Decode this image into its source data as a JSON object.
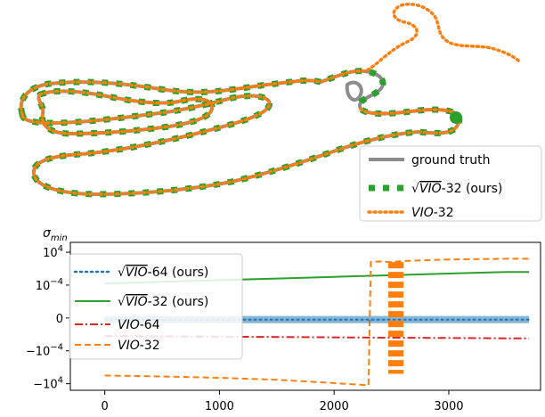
{
  "colors": {
    "ground_truth": "#8c8c8c",
    "sqrt_vio": "#2ca02c",
    "vio": "#ff7f0e",
    "sqrt_vio_64": "#1f77b4",
    "vio_64": "#d62728"
  },
  "chart_data": [
    {
      "type": "line",
      "title": "",
      "description_legend": [
        {
          "label": "ground truth",
          "style": "solid",
          "color": "#8c8c8c"
        },
        {
          "label_prefix": "√",
          "label_italic": "VIO",
          "label_suffix": "-32 (ours)",
          "style": "dashed-thick",
          "color": "#2ca02c"
        },
        {
          "label_italic": "VIO",
          "label_suffix": "-32",
          "style": "dotted",
          "color": "#ff7f0e"
        }
      ],
      "legend_placement": "lower-right",
      "series": [
        {
          "name": "ground truth"
        },
        {
          "name": "√VIO-32 (ours)"
        },
        {
          "name": "VIO-32"
        }
      ]
    },
    {
      "type": "line",
      "ylabel_symbol": "σ",
      "ylabel_sub": "min",
      "xlabel": "",
      "x_ticks": [
        "0",
        "1000",
        "2000",
        "3000"
      ],
      "x_tick_values": [
        0,
        1000,
        2000,
        3000
      ],
      "xlim": [
        -300,
        3800
      ],
      "y_ticks": [
        {
          "base": "10",
          "exp": "4",
          "pos": 2
        },
        {
          "base": "10",
          "exp": "−4",
          "pos": 1
        },
        {
          "base": "0",
          "exp": "",
          "pos": 0
        },
        {
          "base": "−10",
          "exp": "−4",
          "pos": -1
        },
        {
          "base": "−10",
          "exp": "4",
          "pos": -2
        }
      ],
      "y_scale": "symlog",
      "legend_placement": "upper-left",
      "series": [
        {
          "name": "√VIO-64 (ours)",
          "label_prefix": "√",
          "label_italic": "VIO",
          "label_suffix": "-64 (ours)",
          "style": "dotted",
          "color": "#1f77b4",
          "x": [
            0,
            500,
            1000,
            1500,
            2000,
            2500,
            3000,
            3500,
            3700
          ],
          "y": [
            -0.05,
            -0.05,
            -0.05,
            -0.05,
            -0.05,
            -0.05,
            -0.05,
            -0.05,
            -0.05
          ]
        },
        {
          "name": "√VIO-32 (ours)",
          "label_prefix": "√",
          "label_italic": "VIO",
          "label_suffix": "-32 (ours)",
          "style": "solid",
          "color": "#2ca02c",
          "x": [
            0,
            500,
            1000,
            1500,
            2000,
            2500,
            3000,
            3500,
            3700
          ],
          "y": [
            1.05,
            1.1,
            1.15,
            1.2,
            1.25,
            1.3,
            1.35,
            1.4,
            1.4
          ]
        },
        {
          "name": "VIO-64",
          "label_italic": "VIO",
          "label_suffix": "-64",
          "style": "dashdot",
          "color": "#d62728",
          "x": [
            0,
            500,
            1000,
            1500,
            2000,
            2500,
            3000,
            3500,
            3700
          ],
          "y": [
            -0.55,
            -0.56,
            -0.57,
            -0.58,
            -0.59,
            -0.6,
            -0.61,
            -0.62,
            -0.62
          ]
        },
        {
          "name": "VIO-32",
          "label_italic": "VIO",
          "label_suffix": "-32",
          "style": "dashed",
          "color": "#ff7f0e",
          "x": [
            0,
            500,
            1000,
            1500,
            2000,
            2300,
            2320,
            2400,
            2500,
            2600,
            3000,
            3500,
            3700
          ],
          "y": [
            -1.75,
            -1.78,
            -1.82,
            -1.88,
            -1.98,
            -2.05,
            1.7,
            1.72,
            1.7,
            1.73,
            1.78,
            1.8,
            1.8
          ]
        }
      ]
    }
  ]
}
